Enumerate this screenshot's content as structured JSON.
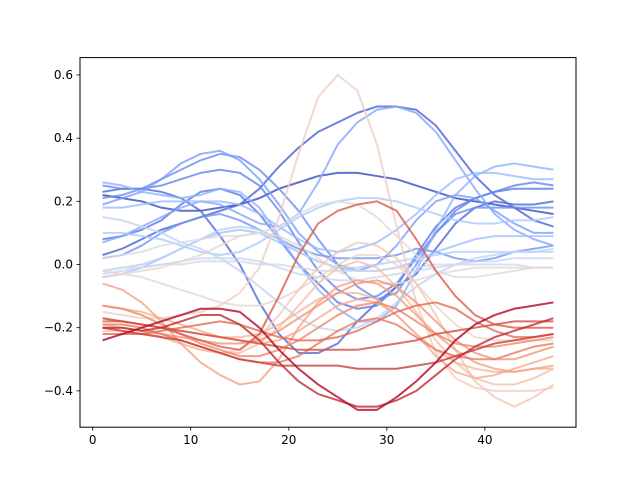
{
  "chart_data": {
    "type": "line",
    "title": "",
    "xlabel": "",
    "ylabel": "",
    "xlim": [
      -1.3,
      49.3
    ],
    "ylim": [
      -0.515,
      0.655
    ],
    "xticks": [
      0,
      10,
      20,
      30,
      40
    ],
    "xtick_labels": [
      "0",
      "10",
      "20",
      "30",
      "40"
    ],
    "yticks": [
      -0.4,
      -0.2,
      0.0,
      0.2,
      0.4,
      0.6
    ],
    "ytick_labels": [
      "−0.4",
      "−0.2",
      "0.0",
      "0.2",
      "0.4",
      "0.6"
    ],
    "grid": false,
    "legend": "none",
    "x": [
      1,
      3,
      5,
      7,
      9,
      11,
      13,
      15,
      17,
      19,
      21,
      23,
      25,
      27,
      29,
      31,
      33,
      35,
      37,
      39,
      41,
      43,
      45,
      47
    ],
    "series": [
      {
        "color": "#3b4cc0",
        "values": [
          0.22,
          0.21,
          0.2,
          0.18,
          0.17,
          0.17,
          0.18,
          0.19,
          0.21,
          0.24,
          0.26,
          0.28,
          0.29,
          0.29,
          0.28,
          0.27,
          0.25,
          0.23,
          0.21,
          0.2,
          0.19,
          0.18,
          0.17,
          0.16
        ]
      },
      {
        "color": "#4a63d3",
        "values": [
          0.03,
          0.05,
          0.08,
          0.11,
          0.13,
          0.15,
          0.17,
          0.19,
          0.24,
          0.31,
          0.37,
          0.42,
          0.45,
          0.48,
          0.5,
          0.5,
          0.49,
          0.44,
          0.36,
          0.28,
          0.22,
          0.18,
          0.14,
          0.12
        ]
      },
      {
        "color": "#4f69d9",
        "values": [
          0.23,
          0.24,
          0.24,
          0.23,
          0.21,
          0.17,
          0.09,
          0.0,
          -0.12,
          -0.22,
          -0.28,
          -0.28,
          -0.25,
          -0.18,
          -0.12,
          -0.07,
          -0.03,
          0.05,
          0.13,
          0.18,
          0.2,
          0.19,
          0.19,
          0.2
        ]
      },
      {
        "color": "#5a78e4",
        "values": [
          0.08,
          0.09,
          0.11,
          0.14,
          0.19,
          0.23,
          0.24,
          0.22,
          0.16,
          0.08,
          0.0,
          -0.06,
          -0.12,
          -0.14,
          -0.13,
          -0.07,
          0.03,
          0.12,
          0.18,
          0.21,
          0.23,
          0.24,
          0.24,
          0.24
        ]
      },
      {
        "color": "#6485ec",
        "values": [
          0.25,
          0.24,
          0.24,
          0.25,
          0.27,
          0.29,
          0.3,
          0.29,
          0.25,
          0.17,
          0.07,
          -0.02,
          -0.08,
          -0.11,
          -0.1,
          -0.06,
          0.02,
          0.1,
          0.17,
          0.21,
          0.23,
          0.25,
          0.26,
          0.25
        ]
      },
      {
        "color": "#6b8df0",
        "values": [
          0.21,
          0.22,
          0.24,
          0.27,
          0.3,
          0.33,
          0.35,
          0.34,
          0.3,
          0.24,
          0.17,
          0.08,
          0.0,
          -0.07,
          -0.11,
          -0.09,
          0.0,
          0.1,
          0.16,
          0.18,
          0.18,
          0.18,
          0.18,
          0.18
        ]
      },
      {
        "color": "#7396f5",
        "values": [
          0.02,
          0.03,
          0.06,
          0.1,
          0.13,
          0.15,
          0.16,
          0.14,
          0.11,
          0.08,
          0.05,
          0.03,
          0.02,
          0.02,
          0.02,
          0.03,
          0.05,
          0.04,
          0.02,
          0.01,
          0.02,
          0.04,
          0.05,
          0.06
        ]
      },
      {
        "color": "#7b9ff9",
        "values": [
          0.19,
          0.21,
          0.23,
          0.27,
          0.32,
          0.35,
          0.36,
          0.33,
          0.27,
          0.19,
          0.1,
          0.04,
          0.0,
          -0.02,
          0.0,
          0.06,
          0.14,
          0.2,
          0.22,
          0.21,
          0.17,
          0.13,
          0.1,
          0.1
        ]
      },
      {
        "color": "#85a8fc",
        "values": [
          0.07,
          0.09,
          0.12,
          0.15,
          0.18,
          0.2,
          0.19,
          0.16,
          0.13,
          0.12,
          0.16,
          0.26,
          0.38,
          0.45,
          0.49,
          0.5,
          0.48,
          0.42,
          0.33,
          0.24,
          0.16,
          0.11,
          0.08,
          0.06
        ]
      },
      {
        "color": "#8fb1fe",
        "values": [
          0.26,
          0.25,
          0.23,
          0.22,
          0.21,
          0.22,
          0.24,
          0.23,
          0.18,
          0.09,
          0.0,
          -0.08,
          -0.14,
          -0.18,
          -0.18,
          -0.13,
          -0.02,
          0.11,
          0.22,
          0.28,
          0.31,
          0.32,
          0.31,
          0.3
        ]
      },
      {
        "color": "#9abbff",
        "values": [
          0.18,
          0.18,
          0.19,
          0.2,
          0.2,
          0.2,
          0.2,
          0.19,
          0.16,
          0.12,
          0.08,
          0.05,
          0.04,
          0.05,
          0.07,
          0.11,
          0.16,
          0.22,
          0.27,
          0.29,
          0.29,
          0.28,
          0.27,
          0.27
        ]
      },
      {
        "color": "#a3c2fe",
        "values": [
          -0.04,
          -0.03,
          -0.01,
          0.02,
          0.05,
          0.08,
          0.1,
          0.11,
          0.1,
          0.07,
          0.04,
          0.01,
          -0.01,
          -0.02,
          -0.02,
          -0.01,
          0.01,
          0.04,
          0.06,
          0.08,
          0.09,
          0.09,
          0.09,
          0.09
        ]
      },
      {
        "color": "#adc9fd",
        "values": [
          0.1,
          0.1,
          0.09,
          0.08,
          0.06,
          0.04,
          0.03,
          0.04,
          0.07,
          0.11,
          0.15,
          0.18,
          0.2,
          0.21,
          0.21,
          0.2,
          0.18,
          0.16,
          0.14,
          0.13,
          0.13,
          0.14,
          0.14,
          0.15
        ]
      },
      {
        "color": "#b7cff9",
        "values": [
          -0.02,
          -0.01,
          0.0,
          0.02,
          0.05,
          0.08,
          0.11,
          0.12,
          0.11,
          0.08,
          0.04,
          0.01,
          -0.01,
          -0.01,
          0.0,
          0.01,
          0.02,
          0.03,
          0.04,
          0.04,
          0.04,
          0.04,
          0.04,
          0.04
        ]
      },
      {
        "color": "#c0d4f5",
        "values": [
          0.15,
          0.14,
          0.12,
          0.1,
          0.07,
          0.05,
          0.02,
          -0.02,
          -0.07,
          -0.12,
          -0.17,
          -0.2,
          -0.21,
          -0.2,
          -0.17,
          -0.12,
          -0.07,
          -0.03,
          0.0,
          0.02,
          0.03,
          0.04,
          0.04,
          0.05
        ]
      },
      {
        "color": "#c9d7f0",
        "values": [
          -0.03,
          -0.02,
          -0.01,
          0.0,
          0.01,
          0.02,
          0.02,
          0.02,
          0.01,
          -0.01,
          -0.03,
          -0.04,
          -0.05,
          -0.05,
          -0.04,
          -0.03,
          -0.02,
          -0.01,
          0.0,
          0.01,
          0.01,
          0.02,
          0.02,
          0.02
        ]
      },
      {
        "color": "#d1dae9",
        "values": [
          -0.02,
          -0.01,
          -0.01,
          0.0,
          0.0,
          0.01,
          0.01,
          0.01,
          0.0,
          0.0,
          -0.01,
          -0.02,
          -0.02,
          -0.02,
          -0.02,
          -0.01,
          -0.01,
          0.0,
          0.0,
          0.0,
          0.0,
          0.0,
          -0.01,
          -0.01
        ]
      },
      {
        "color": "#d9dce1",
        "values": [
          0.02,
          0.03,
          0.04,
          0.06,
          0.07,
          0.08,
          0.09,
          0.09,
          0.1,
          0.12,
          0.16,
          0.19,
          0.2,
          0.19,
          0.15,
          0.09,
          0.03,
          -0.02,
          -0.04,
          -0.04,
          -0.03,
          -0.02,
          -0.01,
          -0.01
        ]
      },
      {
        "color": "#e2dad5",
        "values": [
          -0.04,
          -0.03,
          -0.02,
          -0.01,
          0.01,
          0.03,
          0.06,
          0.09,
          0.1,
          0.09,
          0.06,
          0.02,
          -0.02,
          -0.05,
          -0.06,
          -0.06,
          -0.05,
          -0.03,
          -0.02,
          -0.01,
          -0.01,
          -0.01,
          -0.01,
          -0.01
        ]
      },
      {
        "color": "#e8d6cc",
        "values": [
          -0.02,
          -0.03,
          -0.04,
          -0.06,
          -0.08,
          -0.1,
          -0.12,
          -0.13,
          -0.13,
          -0.11,
          -0.08,
          -0.04,
          0.0,
          0.03,
          0.03,
          0.0,
          -0.06,
          -0.13,
          -0.19,
          -0.23,
          -0.24,
          -0.24,
          -0.24,
          -0.24
        ]
      },
      {
        "color": "#eed0c0",
        "values": [
          -0.15,
          -0.16,
          -0.17,
          -0.17,
          -0.16,
          -0.15,
          -0.13,
          -0.09,
          -0.01,
          0.15,
          0.35,
          0.53,
          0.6,
          0.55,
          0.38,
          0.12,
          -0.12,
          -0.28,
          -0.36,
          -0.39,
          -0.4,
          -0.4,
          -0.4,
          -0.39
        ]
      },
      {
        "color": "#f2c9b4",
        "values": [
          -0.19,
          -0.2,
          -0.21,
          -0.23,
          -0.25,
          -0.27,
          -0.28,
          -0.27,
          -0.23,
          -0.16,
          -0.08,
          -0.01,
          0.04,
          0.07,
          0.06,
          0.02,
          -0.06,
          -0.16,
          -0.27,
          -0.37,
          -0.42,
          -0.45,
          -0.42,
          -0.38
        ]
      },
      {
        "color": "#f5c0a7",
        "values": [
          -0.21,
          -0.21,
          -0.22,
          -0.23,
          -0.25,
          -0.27,
          -0.28,
          -0.28,
          -0.25,
          -0.2,
          -0.13,
          -0.06,
          -0.01,
          0.01,
          -0.01,
          -0.07,
          -0.15,
          -0.24,
          -0.31,
          -0.36,
          -0.38,
          -0.38,
          -0.36,
          -0.33
        ]
      },
      {
        "color": "#f6b79a",
        "values": [
          -0.17,
          -0.18,
          -0.19,
          -0.2,
          -0.21,
          -0.22,
          -0.23,
          -0.23,
          -0.22,
          -0.19,
          -0.15,
          -0.11,
          -0.09,
          -0.09,
          -0.11,
          -0.16,
          -0.22,
          -0.27,
          -0.31,
          -0.33,
          -0.34,
          -0.34,
          -0.33,
          -0.33
        ]
      },
      {
        "color": "#f7ac8e",
        "values": [
          -0.13,
          -0.14,
          -0.15,
          -0.17,
          -0.19,
          -0.21,
          -0.23,
          -0.24,
          -0.25,
          -0.24,
          -0.21,
          -0.17,
          -0.13,
          -0.11,
          -0.12,
          -0.16,
          -0.22,
          -0.29,
          -0.34,
          -0.36,
          -0.35,
          -0.33,
          -0.31,
          -0.29
        ]
      },
      {
        "color": "#f5a182",
        "values": [
          -0.06,
          -0.08,
          -0.12,
          -0.18,
          -0.25,
          -0.31,
          -0.35,
          -0.38,
          -0.37,
          -0.3,
          -0.2,
          -0.12,
          -0.07,
          -0.05,
          -0.06,
          -0.1,
          -0.16,
          -0.22,
          -0.27,
          -0.31,
          -0.33,
          -0.34,
          -0.33,
          -0.32
        ]
      },
      {
        "color": "#f39577",
        "values": [
          -0.2,
          -0.2,
          -0.21,
          -0.22,
          -0.23,
          -0.24,
          -0.25,
          -0.25,
          -0.24,
          -0.21,
          -0.17,
          -0.13,
          -0.09,
          -0.06,
          -0.05,
          -0.07,
          -0.12,
          -0.18,
          -0.24,
          -0.28,
          -0.3,
          -0.3,
          -0.28,
          -0.26
        ]
      },
      {
        "color": "#ef896c",
        "values": [
          -0.13,
          -0.14,
          -0.16,
          -0.19,
          -0.22,
          -0.25,
          -0.27,
          -0.29,
          -0.29,
          -0.27,
          -0.24,
          -0.2,
          -0.16,
          -0.13,
          -0.12,
          -0.14,
          -0.18,
          -0.22,
          -0.25,
          -0.26,
          -0.26,
          -0.25,
          -0.24,
          -0.23
        ]
      },
      {
        "color": "#e97b61",
        "values": [
          -0.19,
          -0.19,
          -0.2,
          -0.22,
          -0.24,
          -0.26,
          -0.28,
          -0.3,
          -0.31,
          -0.31,
          -0.29,
          -0.25,
          -0.21,
          -0.18,
          -0.17,
          -0.19,
          -0.23,
          -0.27,
          -0.29,
          -0.3,
          -0.3,
          -0.28,
          -0.26,
          -0.25
        ]
      },
      {
        "color": "#e36c55",
        "values": [
          -0.22,
          -0.22,
          -0.22,
          -0.21,
          -0.2,
          -0.19,
          -0.18,
          -0.19,
          -0.21,
          -0.23,
          -0.24,
          -0.24,
          -0.23,
          -0.21,
          -0.18,
          -0.15,
          -0.13,
          -0.12,
          -0.14,
          -0.18,
          -0.21,
          -0.23,
          -0.23,
          -0.22
        ]
      },
      {
        "color": "#dc5d4a",
        "values": [
          -0.18,
          -0.18,
          -0.19,
          -0.2,
          -0.22,
          -0.24,
          -0.26,
          -0.27,
          -0.22,
          -0.1,
          0.03,
          0.13,
          0.17,
          0.19,
          0.2,
          0.17,
          0.08,
          -0.02,
          -0.1,
          -0.16,
          -0.19,
          -0.2,
          -0.2,
          -0.2
        ]
      },
      {
        "color": "#d44e41",
        "values": [
          -0.17,
          -0.18,
          -0.19,
          -0.2,
          -0.21,
          -0.22,
          -0.23,
          -0.24,
          -0.25,
          -0.26,
          -0.27,
          -0.27,
          -0.27,
          -0.27,
          -0.26,
          -0.25,
          -0.24,
          -0.22,
          -0.21,
          -0.2,
          -0.19,
          -0.18,
          -0.18,
          -0.18
        ]
      },
      {
        "color": "#ca3e38",
        "values": [
          -0.2,
          -0.21,
          -0.22,
          -0.23,
          -0.24,
          -0.26,
          -0.28,
          -0.3,
          -0.31,
          -0.32,
          -0.32,
          -0.32,
          -0.32,
          -0.33,
          -0.33,
          -0.33,
          -0.32,
          -0.31,
          -0.29,
          -0.27,
          -0.25,
          -0.24,
          -0.23,
          -0.22
        ]
      },
      {
        "color": "#bf2c30",
        "values": [
          -0.2,
          -0.2,
          -0.21,
          -0.2,
          -0.18,
          -0.16,
          -0.16,
          -0.19,
          -0.24,
          -0.31,
          -0.37,
          -0.41,
          -0.43,
          -0.45,
          -0.45,
          -0.43,
          -0.4,
          -0.35,
          -0.3,
          -0.26,
          -0.23,
          -0.21,
          -0.19,
          -0.17
        ]
      },
      {
        "color": "#b40426",
        "values": [
          -0.24,
          -0.22,
          -0.2,
          -0.18,
          -0.16,
          -0.14,
          -0.14,
          -0.15,
          -0.2,
          -0.27,
          -0.33,
          -0.38,
          -0.42,
          -0.46,
          -0.46,
          -0.42,
          -0.37,
          -0.31,
          -0.24,
          -0.19,
          -0.16,
          -0.14,
          -0.13,
          -0.12
        ]
      }
    ]
  }
}
